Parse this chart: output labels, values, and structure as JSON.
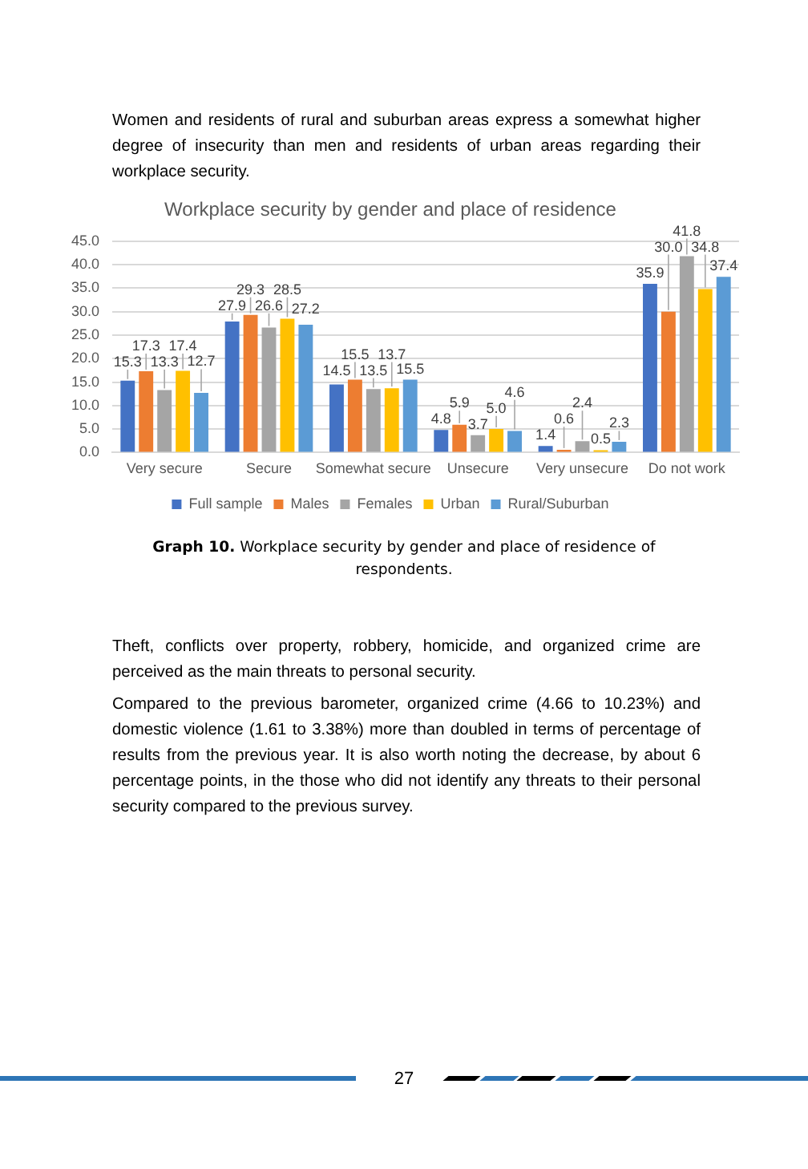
{
  "chart_data": {
    "type": "bar",
    "title": "Workplace security by gender and place of residence",
    "categories": [
      "Very secure",
      "Secure",
      "Somewhat secure",
      "Unsecure",
      "Very unsecure",
      "Do not work"
    ],
    "series": [
      {
        "name": "Full sample",
        "color": "#4472c4",
        "values": [
          15.3,
          27.9,
          14.5,
          4.8,
          1.4,
          35.9
        ],
        "value_labels": [
          "15.3",
          "27.9",
          "14.5",
          "4.8",
          "1.4",
          "35.9"
        ]
      },
      {
        "name": "Males",
        "color": "#ed7d31",
        "values": [
          17.3,
          29.3,
          15.5,
          5.9,
          0.6,
          30.0
        ],
        "value_labels": [
          "17.3",
          "29.3",
          "15.5",
          "5.9",
          "0.6",
          "30.0"
        ]
      },
      {
        "name": "Females",
        "color": "#a5a5a5",
        "values": [
          13.3,
          26.6,
          13.5,
          3.7,
          2.4,
          41.8
        ],
        "value_labels": [
          "13.3",
          "26.6",
          "13.5",
          "3.7",
          "2.4",
          "41.8"
        ]
      },
      {
        "name": "Urban",
        "color": "#ffc000",
        "values": [
          17.4,
          28.5,
          13.7,
          5.0,
          0.5,
          34.8
        ],
        "value_labels": [
          "17.4",
          "28.5",
          "13.7",
          "5.0",
          "0.5",
          "34.8"
        ]
      },
      {
        "name": "Rural/Suburban",
        "color": "#5b9bd5",
        "values": [
          12.7,
          27.2,
          15.5,
          4.6,
          2.3,
          37.4
        ],
        "value_labels": [
          "12.7",
          "27.2",
          "15.5",
          "4.6",
          "2.3",
          "37.4"
        ]
      }
    ],
    "ylim": [
      0,
      45
    ],
    "yticks": [
      {
        "value": 0,
        "label": "0.0"
      },
      {
        "value": 5,
        "label": "5.0"
      },
      {
        "value": 10,
        "label": "10.0"
      },
      {
        "value": 15,
        "label": "15.0"
      },
      {
        "value": 20,
        "label": "20.0"
      },
      {
        "value": 25,
        "label": "25.0"
      },
      {
        "value": 30,
        "label": "30.0"
      },
      {
        "value": 35,
        "label": "35.0"
      },
      {
        "value": 40,
        "label": "40.0"
      },
      {
        "value": 45,
        "label": "45.0"
      }
    ],
    "grid": "y",
    "legend": "bottom",
    "annotations": [
      "Women and residents of rural and suburban areas express a somewhat higher degree of insecurity than men and residents of urban areas regarding their workplace security.",
      "Graph 10.",
      "Workplace security by gender and place of residence of respondents.",
      "Theft, conflicts over property, robbery, homicide, and organized crime are perceived as the main threats to personal security.",
      "Compared to the previous barometer, organized crime (4.66 to 10.23%) and domestic violence (1.61 to 3.38%) more than doubled in terms of percentage of results from the previous year. It is also worth noting the decrease, by about 6 percentage points, in the those who did not identify any threats to their personal security compared to the previous survey.",
      "27"
    ]
  }
}
